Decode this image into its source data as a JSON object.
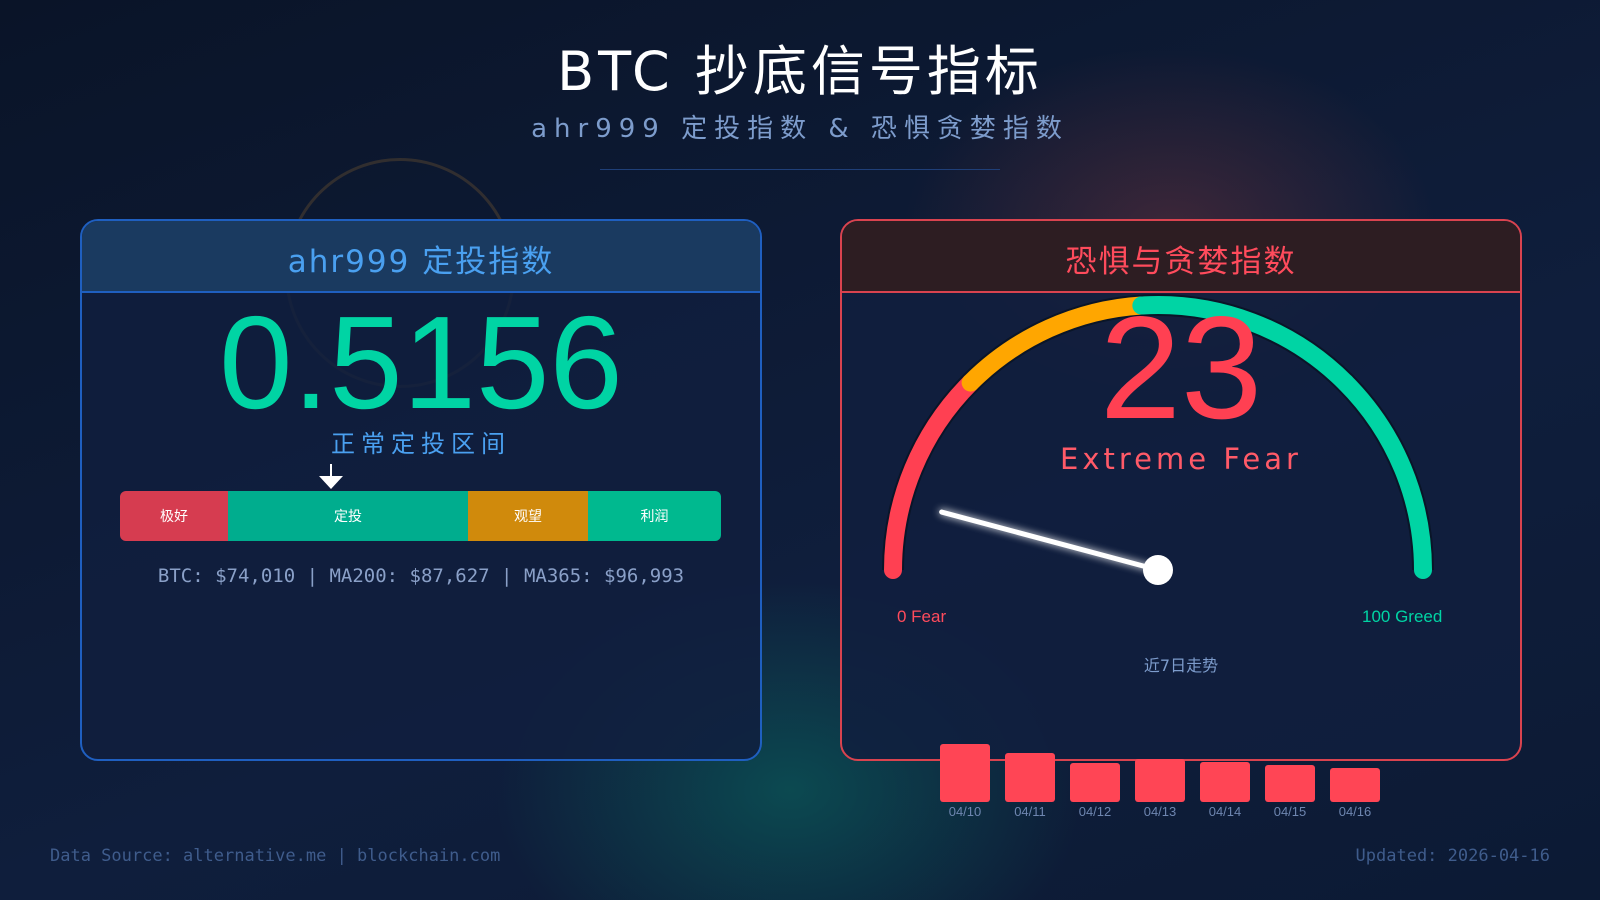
{
  "header": {
    "title": "BTC 抄底信号指标",
    "subtitle": "ahr999 定投指数 & 恐惧贪婪指数"
  },
  "ahr999": {
    "title": "ahr999 定投指数",
    "value": "0.5156",
    "zone": "正常定投区间",
    "scale": [
      {
        "label": "极好",
        "color": "#d63c50"
      },
      {
        "label": "定投",
        "color": "#00ad8e"
      },
      {
        "label": "观望",
        "color": "#d08a0c"
      },
      {
        "label": "利润",
        "color": "#00b98f"
      }
    ],
    "prices": "BTC: $74,010 | MA200: $87,627 | MA365: $96,993"
  },
  "fear_greed": {
    "title": "恐惧与贪婪指数",
    "value": "23",
    "label": "Extreme Fear",
    "min_label": "0 Fear",
    "max_label": "100 Greed",
    "arc_colors": [
      "#ff4052",
      "#ffa600",
      "#00d4a4",
      "#00d4a4"
    ],
    "trend_title": "近7日走势",
    "trend": [
      {
        "date": "04/10",
        "value": 39
      },
      {
        "date": "04/11",
        "value": 33
      },
      {
        "date": "04/12",
        "value": 26
      },
      {
        "date": "04/13",
        "value": 29
      },
      {
        "date": "04/14",
        "value": 27
      },
      {
        "date": "04/15",
        "value": 25
      },
      {
        "date": "04/16",
        "value": 23
      }
    ]
  },
  "footer": {
    "source": "Data Source: alternative.me | blockchain.com",
    "updated": "Updated: 2026-04-16"
  }
}
